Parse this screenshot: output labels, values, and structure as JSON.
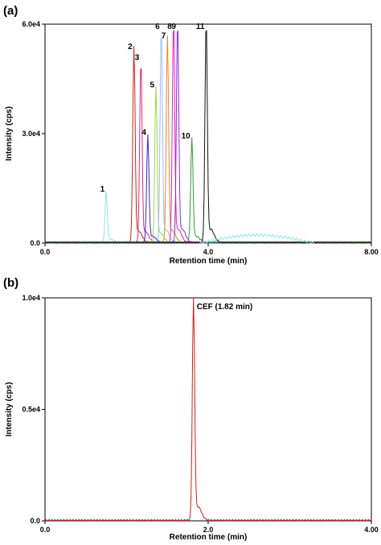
{
  "chart_data": [
    {
      "panel": "(a)",
      "type": "line",
      "xlabel": "Retention time (min)",
      "ylabel": "Intensity (cps)",
      "xlim": [
        0,
        8
      ],
      "ylim": [
        0,
        60000
      ],
      "x_ticks": [
        "0.0",
        "4.0",
        "8.00"
      ],
      "y_ticks": [
        "0.0",
        "3.0e4",
        "6.0e4"
      ],
      "x_tick_values": [
        0,
        4,
        8
      ],
      "y_tick_values": [
        0,
        30000,
        60000
      ],
      "grid": false,
      "series": [
        {
          "color": "#8fe3e3",
          "peak_rt": 1.5,
          "peak_height": 13500,
          "label": "1"
        },
        {
          "color": "#d21e1e",
          "peak_rt": 2.18,
          "peak_height": 52500,
          "label": "2"
        },
        {
          "color": "#d8287d",
          "peak_rt": 2.35,
          "peak_height": 49500,
          "label": "3"
        },
        {
          "color": "#2b2bd6",
          "peak_rt": 2.52,
          "peak_height": 29000,
          "label": "4"
        },
        {
          "color": "#93e03a",
          "peak_rt": 2.72,
          "peak_height": 42000,
          "label": "5"
        },
        {
          "color": "#9fb8ff",
          "peak_rt": 2.85,
          "peak_height": 58000,
          "label": "6"
        },
        {
          "color": "#f08a14",
          "peak_rt": 3.0,
          "peak_height": 55500,
          "label": "7"
        },
        {
          "color": "#e81cc8",
          "peak_rt": 3.15,
          "peak_height": 60000,
          "label": "8"
        },
        {
          "color": "#7a32d0",
          "peak_rt": 3.25,
          "peak_height": 60000,
          "label": "9"
        },
        {
          "color": "#2f9c2f",
          "peak_rt": 3.6,
          "peak_height": 28000,
          "label": "10"
        },
        {
          "color": "#111111",
          "peak_rt": 3.95,
          "peak_height": 60000,
          "label": "11"
        }
      ]
    },
    {
      "panel": "(b)",
      "type": "line",
      "xlabel": "Retention time (min)",
      "ylabel": "Intensity (cps)",
      "xlim": [
        0,
        4
      ],
      "ylim": [
        0,
        10000
      ],
      "x_ticks": [
        "0.0",
        "2.0",
        "4.00"
      ],
      "y_ticks": [
        "0.0",
        "0.5e4",
        "1.0e4"
      ],
      "x_tick_values": [
        0,
        2,
        4
      ],
      "y_tick_values": [
        0,
        5000,
        10000
      ],
      "grid": false,
      "series": [
        {
          "color": "#d21e1e",
          "peak_rt": 1.82,
          "peak_height": 10000
        }
      ],
      "annotation": "CEF (1.82 min)"
    }
  ]
}
